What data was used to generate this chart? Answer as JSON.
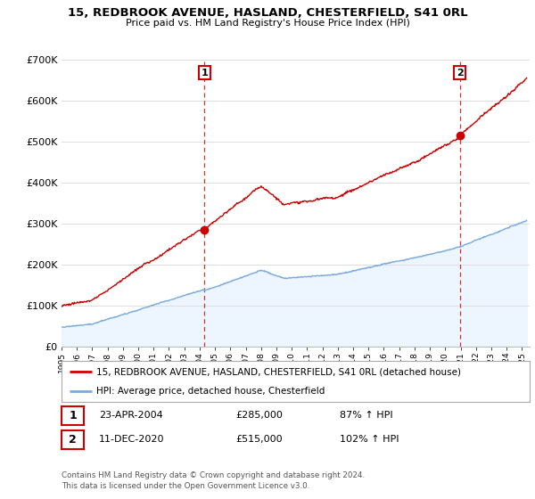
{
  "title_line1": "15, REDBROOK AVENUE, HASLAND, CHESTERFIELD, S41 0RL",
  "title_line2": "Price paid vs. HM Land Registry's House Price Index (HPI)",
  "ylim": [
    0,
    700000
  ],
  "yticks": [
    0,
    100000,
    200000,
    300000,
    400000,
    500000,
    600000,
    700000
  ],
  "ytick_labels": [
    "£0",
    "£100K",
    "£200K",
    "£300K",
    "£400K",
    "£500K",
    "£600K",
    "£700K"
  ],
  "xlim_start": 1995.0,
  "xlim_end": 2025.5,
  "sale1_date": 2004.31,
  "sale1_price": 285000,
  "sale1_label": "1",
  "sale1_text": "23-APR-2004",
  "sale1_pct": "87% ↑ HPI",
  "sale2_date": 2020.95,
  "sale2_price": 515000,
  "sale2_label": "2",
  "sale2_text": "11-DEC-2020",
  "sale2_pct": "102% ↑ HPI",
  "red_color": "#cc0000",
  "blue_color": "#7aaadd",
  "fill_color": "#ddeeff",
  "dashed_color": "#cc0000",
  "background_color": "#ffffff",
  "grid_color": "#dddddd",
  "legend_line1": "15, REDBROOK AVENUE, HASLAND, CHESTERFIELD, S41 0RL (detached house)",
  "legend_line2": "HPI: Average price, detached house, Chesterfield",
  "footer": "Contains HM Land Registry data © Crown copyright and database right 2024.\nThis data is licensed under the Open Government Licence v3.0."
}
